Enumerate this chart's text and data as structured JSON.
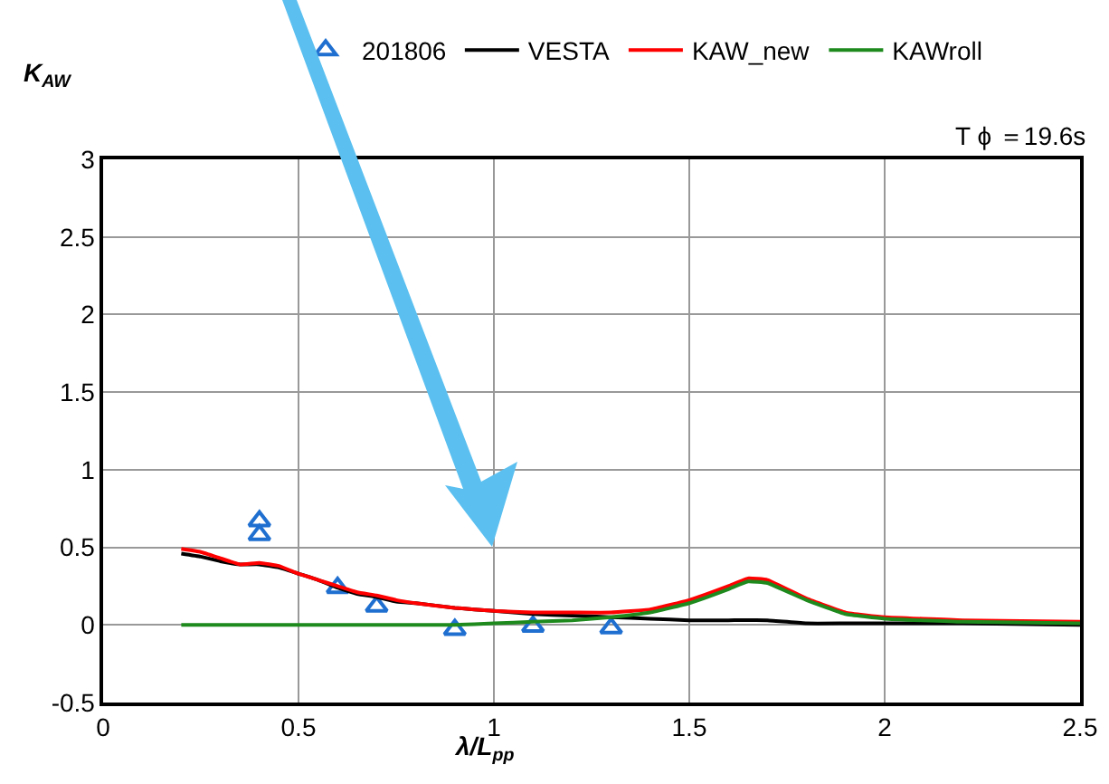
{
  "chart_data": {
    "type": "line",
    "ylabel": "K$_{AW}$",
    "xlabel": "λ/L$_{pp}$",
    "annotations": [
      "T ϕ ＝19.6s"
    ],
    "xlim": [
      0,
      2.5
    ],
    "xticks": [
      0,
      0.5,
      1,
      1.5,
      2,
      2.5
    ],
    "ylim": [
      -0.5,
      3
    ],
    "yticks": [
      -0.5,
      0,
      0.5,
      1,
      1.5,
      2,
      2.5,
      3
    ],
    "grid": true,
    "legend": "top",
    "series": [
      {
        "name": "201806",
        "type": "scatter",
        "marker": "triangle",
        "color": "#1f6fd0",
        "x": [
          0.4,
          0.4,
          0.6,
          0.7,
          0.9,
          1.1,
          1.3
        ],
        "values": [
          0.67,
          0.58,
          0.24,
          0.12,
          -0.03,
          -0.01,
          -0.02
        ]
      },
      {
        "name": "VESTA",
        "color": "#000000",
        "x": [
          0.2,
          0.25,
          0.3,
          0.35,
          0.4,
          0.45,
          0.5,
          0.55,
          0.6,
          0.65,
          0.7,
          0.75,
          0.8,
          0.9,
          1.0,
          1.1,
          1.2,
          1.3,
          1.4,
          1.5,
          1.6,
          1.7,
          1.8,
          1.9,
          2.0,
          2.2,
          2.5
        ],
        "values": [
          0.46,
          0.44,
          0.41,
          0.39,
          0.39,
          0.37,
          0.33,
          0.29,
          0.24,
          0.2,
          0.18,
          0.15,
          0.14,
          0.11,
          0.09,
          0.07,
          0.06,
          0.05,
          0.04,
          0.03,
          0.03,
          0.03,
          0.01,
          0.01,
          0.01,
          0.01,
          0.0
        ]
      },
      {
        "name": "KAW_new",
        "color": "#ff0000",
        "x": [
          0.2,
          0.25,
          0.3,
          0.35,
          0.4,
          0.45,
          0.5,
          0.55,
          0.6,
          0.65,
          0.7,
          0.75,
          0.8,
          0.9,
          1.0,
          1.1,
          1.2,
          1.3,
          1.4,
          1.5,
          1.6,
          1.65,
          1.7,
          1.8,
          1.9,
          2.0,
          2.2,
          2.5
        ],
        "values": [
          0.49,
          0.47,
          0.43,
          0.39,
          0.4,
          0.38,
          0.33,
          0.29,
          0.25,
          0.21,
          0.19,
          0.16,
          0.14,
          0.11,
          0.09,
          0.08,
          0.08,
          0.08,
          0.1,
          0.16,
          0.25,
          0.3,
          0.29,
          0.17,
          0.08,
          0.05,
          0.03,
          0.02
        ]
      },
      {
        "name": "KAWroll",
        "color": "#1e8a1e",
        "x": [
          0.2,
          0.5,
          0.9,
          1.0,
          1.1,
          1.2,
          1.3,
          1.4,
          1.5,
          1.6,
          1.65,
          1.7,
          1.8,
          1.9,
          2.0,
          2.2,
          2.5
        ],
        "values": [
          0.0,
          0.0,
          0.0,
          0.01,
          0.02,
          0.03,
          0.05,
          0.08,
          0.14,
          0.23,
          0.28,
          0.27,
          0.16,
          0.07,
          0.04,
          0.02,
          0.01
        ]
      }
    ]
  }
}
